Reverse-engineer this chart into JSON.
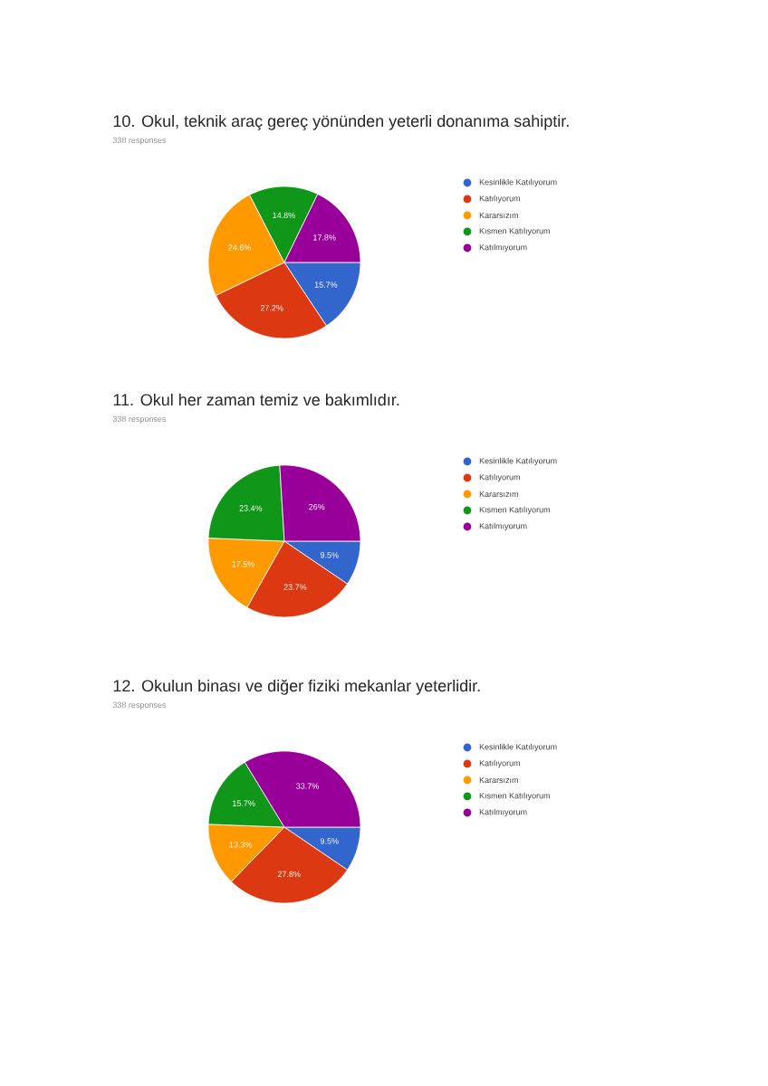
{
  "chart_data": [
    {
      "type": "pie",
      "title": "10. Okul, teknik araç gereç yönünden yeterli donanıma sahiptir.",
      "subtitle": "338 responses",
      "categories": [
        "Kesinlikle Katılıyorum",
        "Katılıyorum",
        "Kararsızım",
        "Kısmen Katılıyorum",
        "Katılmıyorum"
      ],
      "values": [
        15.7,
        27.2,
        24.6,
        14.8,
        17.8
      ],
      "value_labels": [
        "15.7%",
        "27.2%",
        "24.6%",
        "14.8%",
        "17.8%"
      ],
      "colors": [
        "#3366cc",
        "#dc3912",
        "#ff9900",
        "#109618",
        "#990099"
      ],
      "legend": "right"
    },
    {
      "type": "pie",
      "title": "11. Okul her zaman temiz ve bakımlıdır.",
      "subtitle": "338 responses",
      "categories": [
        "Kesinlikle Katılıyorum",
        "Katılıyorum",
        "Kararsızım",
        "Kısmen Katılıyorum",
        "Katılmıyorum"
      ],
      "values": [
        9.5,
        23.7,
        17.5,
        23.4,
        26
      ],
      "value_labels": [
        "9.5%",
        "23.7%",
        "17.5%",
        "23.4%",
        "26%"
      ],
      "colors": [
        "#3366cc",
        "#dc3912",
        "#ff9900",
        "#109618",
        "#990099"
      ],
      "legend": "right"
    },
    {
      "type": "pie",
      "title": "12. Okulun binası ve diğer fiziki mekanlar yeterlidir.",
      "subtitle": "338 responses",
      "categories": [
        "Kesinlikle Katılıyorum",
        "Katılıyorum",
        "Kararsızım",
        "Kısmen Katılıyorum",
        "Katılmıyorum"
      ],
      "values": [
        9.5,
        27.8,
        13.3,
        15.7,
        33.7
      ],
      "value_labels": [
        "9.5%",
        "27.8%",
        "13.3%",
        "15.7%",
        "33.7%"
      ],
      "colors": [
        "#3366cc",
        "#dc3912",
        "#ff9900",
        "#109618",
        "#990099"
      ],
      "legend": "right"
    }
  ]
}
